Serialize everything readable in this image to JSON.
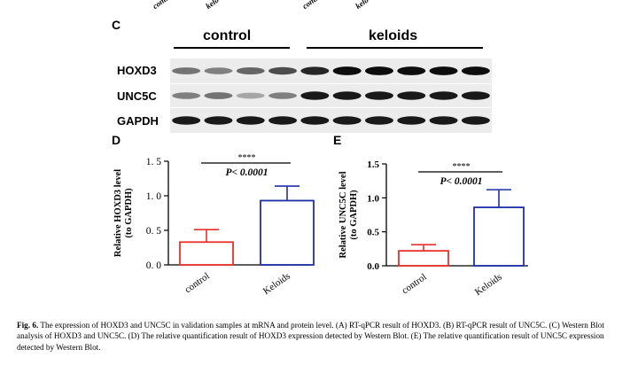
{
  "figure": {
    "top_lane_labels": [
      "contr",
      "kelo",
      "contr",
      "kelo"
    ],
    "panel_c": {
      "letter": "C",
      "group_labels": {
        "control": "control",
        "keloids": "keloids"
      },
      "row_labels": [
        "HOXD3",
        "UNC5C",
        "GAPDH"
      ],
      "band_intensity": {
        "HOXD3": [
          0.55,
          0.5,
          0.6,
          0.7,
          0.85,
          0.95,
          0.95,
          0.95,
          0.95,
          0.95
        ],
        "UNC5C": [
          0.5,
          0.55,
          0.35,
          0.5,
          0.9,
          0.9,
          0.9,
          0.9,
          0.9,
          0.9
        ],
        "GAPDH": [
          0.9,
          0.9,
          0.9,
          0.9,
          0.9,
          0.9,
          0.9,
          0.9,
          0.9,
          0.9
        ]
      }
    },
    "panel_d": {
      "letter": "D",
      "significance": "****",
      "p_value": "P< 0.0001"
    },
    "panel_e": {
      "letter": "E",
      "significance": "****",
      "p_value": "P< 0.0001"
    },
    "caption": {
      "label": "Fig. 6.",
      "text": "The expression of HOXD3 and UNC5C in validation samples at mRNA and protein level. (A) RT-qPCR result of HOXD3. (B) RT-qPCR result of UNC5C. (C) Western Blot analysis of HOXD3 and UNC5C. (D) The relative quantification result of HOXD3 expression detected by Western Blot. (E) The relative quantification result of UNC5C expression detected by Western Blot."
    }
  },
  "chart_data": [
    {
      "type": "bar",
      "categories": [
        "control",
        "Keloids"
      ],
      "values": [
        0.33,
        0.93
      ],
      "errors": [
        0.18,
        0.21
      ],
      "colors": [
        "#e8312a",
        "#1f2fa8"
      ],
      "ylabel": "Relative  HOXD3 level (to GAPDH)",
      "ylim": [
        0,
        1.5
      ],
      "yticks": [
        "0. 0",
        "0. 5",
        "1. 0",
        "1. 5"
      ],
      "ytick_values": [
        0,
        0.5,
        1.0,
        1.5
      ]
    },
    {
      "type": "bar",
      "categories": [
        "control",
        "Keloids"
      ],
      "values": [
        0.22,
        0.86
      ],
      "errors": [
        0.09,
        0.26
      ],
      "colors": [
        "#e8312a",
        "#1f2fa8"
      ],
      "ylabel": "Relative UNC5C level (to GAPDH)",
      "ylim": [
        0,
        1.5
      ],
      "yticks": [
        "0.0",
        "0.5",
        "1.0",
        "1.5"
      ],
      "ytick_values": [
        0,
        0.5,
        1.0,
        1.5
      ]
    }
  ]
}
